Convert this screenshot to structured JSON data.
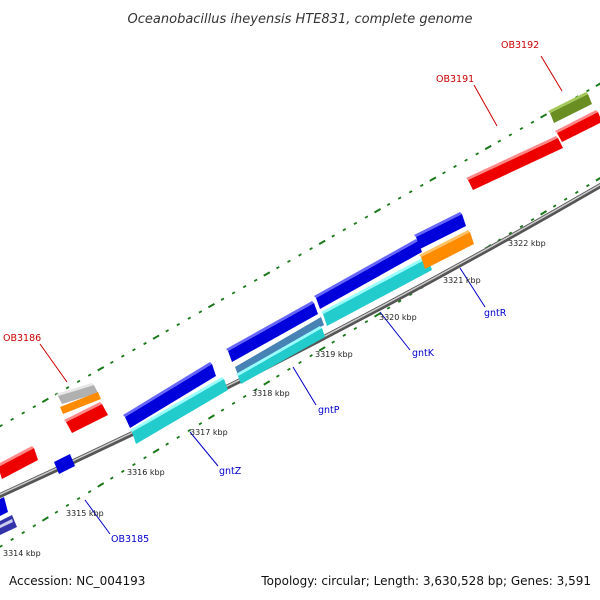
{
  "title": "Oceanobacillus iheyensis HTE831, complete genome",
  "accession": "Accession: NC_004193",
  "topology": "Topology: circular; Length: 3,630,528 bp; Genes: 3,591",
  "colors": {
    "backbone": "#888888",
    "ticks": "#1a7a1a",
    "gene_name_label": "#0000cc",
    "locus_label": "#cc0000",
    "gene_red": "#ee0000",
    "gene_blue": "#0000dd",
    "gene_cyan": "#22cccc",
    "gene_orange": "#ff8c00",
    "gene_olive": "#6b8e23",
    "gene_gray": "#b0b0b0"
  },
  "kbp_ticks": [
    {
      "label": "3314 kbp"
    },
    {
      "label": "3315 kbp"
    },
    {
      "label": "3316 kbp"
    },
    {
      "label": "3317 kbp"
    },
    {
      "label": "3318 kbp"
    },
    {
      "label": "3319 kbp"
    },
    {
      "label": "3320 kbp"
    },
    {
      "label": "3321 kbp"
    },
    {
      "label": "3322 kbp"
    }
  ],
  "labels": {
    "OB3192": "OB3192",
    "OB3191": "OB3191",
    "OB3186": "OB3186",
    "OB3185": "OB3185",
    "gntR": "gntR",
    "gntK": "gntK",
    "gntP": "gntP",
    "gntZ": "gntZ"
  }
}
